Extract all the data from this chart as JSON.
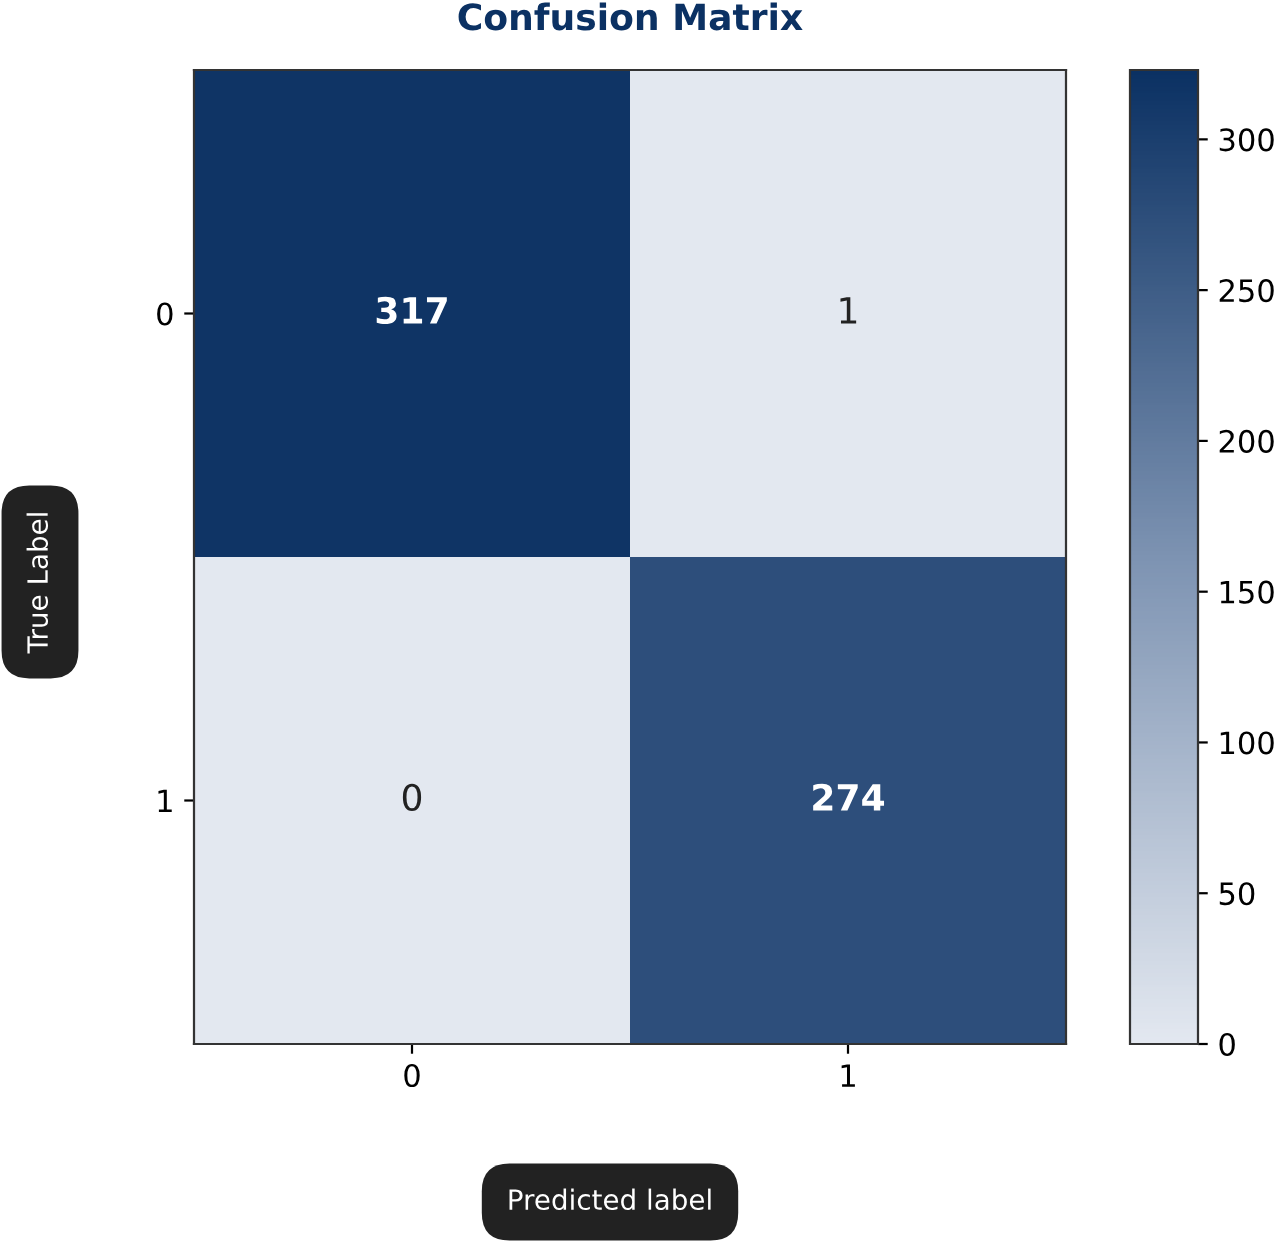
{
  "chart_data": {
    "type": "heatmap",
    "title": "Confusion Matrix",
    "xlabel": "Predicted label",
    "ylabel": "True Label",
    "categories": [
      "0",
      "1"
    ],
    "y_categories": [
      "0",
      "1"
    ],
    "cells": [
      [
        317,
        1
      ],
      [
        0,
        274
      ]
    ],
    "clim": [
      0,
      323
    ],
    "cticks": [
      0,
      50,
      100,
      150,
      200,
      250,
      300
    ],
    "data_labels": true
  }
}
